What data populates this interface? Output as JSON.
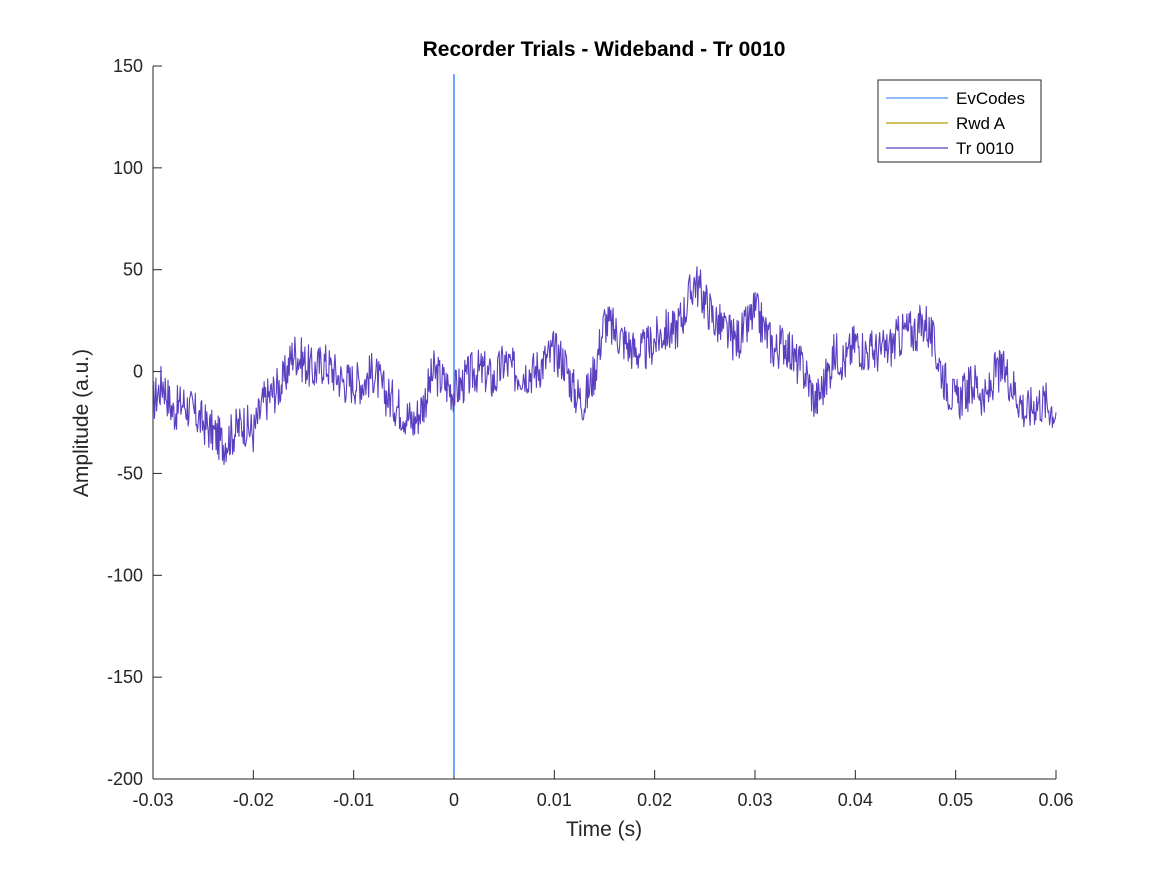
{
  "chart_data": {
    "type": "line",
    "title": "Recorder Trials - Wideband - Tr 0010",
    "xlabel": "Time (s)",
    "ylabel": "Amplitude (a.u.)",
    "xlim": [
      -0.03,
      0.06
    ],
    "ylim": [
      -200,
      150
    ],
    "x_ticks": [
      -0.03,
      -0.02,
      -0.01,
      0,
      0.01,
      0.02,
      0.03,
      0.04,
      0.05,
      0.06
    ],
    "x_tick_labels": [
      "-0.03",
      "-0.02",
      "-0.01",
      "0",
      "0.01",
      "0.02",
      "0.03",
      "0.04",
      "0.05",
      "0.06"
    ],
    "y_ticks": [
      -200,
      -150,
      -100,
      -50,
      0,
      50,
      100,
      150
    ],
    "y_tick_labels": [
      "-200",
      "-150",
      "-100",
      "-50",
      "0",
      "50",
      "100",
      "150"
    ],
    "grid": false,
    "legend_position": "top-right",
    "legend": [
      "EvCodes",
      "Rwd A",
      "Tr 0010"
    ],
    "series": [
      {
        "name": "EvCodes",
        "color": "#4d90fe",
        "kind": "vertical-marker",
        "x": 0,
        "y_range": [
          -198,
          146
        ]
      },
      {
        "name": "Rwd A",
        "color": "#b59a00",
        "x": [],
        "y": []
      },
      {
        "name": "Tr 0010",
        "color": "#5a3fc0",
        "x": [
          -0.03,
          -0.029,
          -0.028,
          -0.027,
          -0.026,
          -0.025,
          -0.024,
          -0.023,
          -0.022,
          -0.021,
          -0.02,
          -0.019,
          -0.018,
          -0.017,
          -0.016,
          -0.015,
          -0.014,
          -0.013,
          -0.012,
          -0.011,
          -0.01,
          -0.009,
          -0.008,
          -0.007,
          -0.006,
          -0.005,
          -0.004,
          -0.003,
          -0.002,
          -0.001,
          0,
          0.001,
          0.002,
          0.003,
          0.004,
          0.005,
          0.006,
          0.007,
          0.008,
          0.009,
          0.01,
          0.011,
          0.012,
          0.013,
          0.014,
          0.015,
          0.016,
          0.017,
          0.018,
          0.019,
          0.02,
          0.021,
          0.022,
          0.023,
          0.024,
          0.025,
          0.026,
          0.027,
          0.028,
          0.029,
          0.03,
          0.031,
          0.032,
          0.033,
          0.034,
          0.035,
          0.036,
          0.037,
          0.038,
          0.039,
          0.04,
          0.041,
          0.042,
          0.043,
          0.044,
          0.045,
          0.046,
          0.047,
          0.048,
          0.049,
          0.05,
          0.051,
          0.052,
          0.053,
          0.054,
          0.055,
          0.056,
          0.057,
          0.058,
          0.059,
          0.06
        ],
        "y": [
          -15,
          -5,
          -20,
          -15,
          -20,
          -25,
          -30,
          -35,
          -30,
          -25,
          -30,
          -15,
          -10,
          -5,
          10,
          5,
          0,
          5,
          0,
          -5,
          -5,
          -5,
          0,
          -10,
          -15,
          -20,
          -25,
          -15,
          0,
          -5,
          -10,
          -5,
          0,
          0,
          -5,
          5,
          0,
          0,
          0,
          5,
          10,
          5,
          -10,
          -15,
          0,
          25,
          20,
          15,
          10,
          10,
          15,
          20,
          20,
          30,
          45,
          35,
          25,
          20,
          15,
          20,
          30,
          20,
          10,
          15,
          5,
          0,
          -15,
          -5,
          10,
          5,
          15,
          10,
          10,
          10,
          15,
          20,
          20,
          25,
          10,
          -5,
          -15,
          -10,
          -5,
          -15,
          0,
          0,
          -10,
          -20,
          -15,
          -15,
          -20
        ]
      }
    ]
  }
}
